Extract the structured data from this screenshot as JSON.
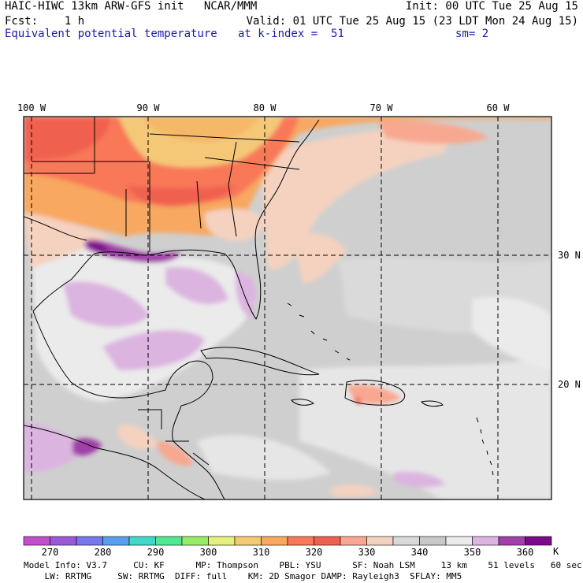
{
  "header": {
    "title": "HAIC-HIWC 13km ARW-GFS init   NCAR/MMM",
    "fcst": "Fcst:    1 h",
    "init": "Init: 00 UTC Tue 25 Aug 15",
    "valid": "Valid: 01 UTC Tue 25 Aug 15 (23 LDT Mon 24 Aug 15)",
    "field": "Equivalent potential temperature",
    "level": "at k-index =  51",
    "smoothing": "sm= 2"
  },
  "map": {
    "lon_labels": [
      "100 W",
      "90 W",
      "80 W",
      "70 W",
      "60 W"
    ],
    "lat_labels": [
      "30 N",
      "20 N"
    ]
  },
  "colorbar": {
    "unit": "K",
    "tick_labels": [
      "270",
      "280",
      "290",
      "300",
      "310",
      "320",
      "330",
      "340",
      "350",
      "360"
    ],
    "colors": [
      "#c050c8",
      "#9a5ad4",
      "#7878e8",
      "#5a9ef0",
      "#40d8c8",
      "#50e890",
      "#98ec68",
      "#e6f080",
      "#f5c878",
      "#f8a860",
      "#f87858",
      "#f06050",
      "#f8a890",
      "#f5d2c0",
      "#d9d9d9",
      "#c8c8c8",
      "#ebebeb",
      "#dcb4e0",
      "#a040a8",
      "#7a0a88"
    ]
  },
  "footer": {
    "line1": "Model Info: V3.7     CU: KF      MP: Thompson    PBL: YSU      SF: Noah LSM     13 km    51 levels   60 sec",
    "line2": "    LW: RRTMG     SW: RRTMG  DIFF: full    KM: 2D Smagor DAMP: Rayleigh3  SFLAY: MM5"
  }
}
